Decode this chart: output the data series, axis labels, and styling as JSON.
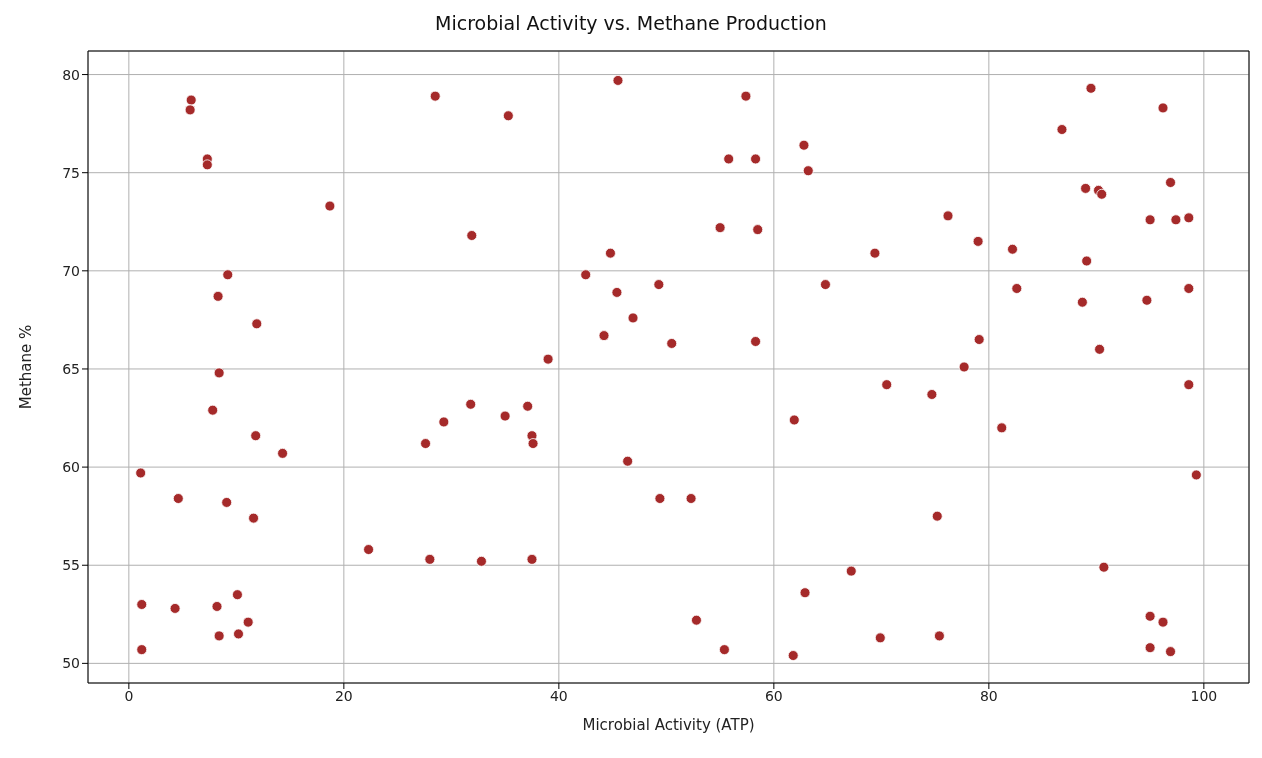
{
  "chart_data": {
    "type": "scatter",
    "title": "Microbial Activity vs. Methane Production",
    "xlabel": "Microbial Activity (ATP)",
    "ylabel": "Methane %",
    "x": [
      5.8,
      5.7,
      7.3,
      7.3,
      18.7,
      31.9,
      28.5,
      35.3,
      9.2,
      8.3,
      11.9,
      8.4,
      7.8,
      11.8,
      14.3,
      1.1,
      4.6,
      9.1,
      11.6,
      1.2,
      4.3,
      8.2,
      10.1,
      11.1,
      8.4,
      10.2,
      1.2,
      22.3,
      27.6,
      29.3,
      31.8,
      35.0,
      28.0,
      32.8,
      37.1,
      37.5,
      37.6,
      37.5,
      39.0,
      45.5,
      57.4,
      62.8,
      55.8,
      58.3,
      63.2,
      55.0,
      58.5,
      44.8,
      69.4,
      42.5,
      45.4,
      49.3,
      64.8,
      46.9,
      44.2,
      50.5,
      58.3,
      70.5,
      61.9,
      46.4,
      49.4,
      52.3,
      67.2,
      62.9,
      52.8,
      69.9,
      55.4,
      61.8,
      89.5,
      96.2,
      86.8,
      89.0,
      90.2,
      90.5,
      96.9,
      76.2,
      95.0,
      97.4,
      98.6,
      79.0,
      82.2,
      89.1,
      82.6,
      88.7,
      94.7,
      98.6,
      79.1,
      77.7,
      90.3,
      74.7,
      98.6,
      81.2,
      99.3,
      75.2,
      90.7,
      95.0,
      96.2,
      75.4,
      95.0,
      96.9
    ],
    "values": [
      78.7,
      78.2,
      75.7,
      75.4,
      73.3,
      71.8,
      78.9,
      77.9,
      69.8,
      68.7,
      67.3,
      64.8,
      62.9,
      61.6,
      60.7,
      59.7,
      58.4,
      58.2,
      57.4,
      53.0,
      52.8,
      52.9,
      53.5,
      52.1,
      51.4,
      51.5,
      50.7,
      55.8,
      61.2,
      62.3,
      63.2,
      62.6,
      55.3,
      55.2,
      63.1,
      61.6,
      61.2,
      55.3,
      65.5,
      79.7,
      78.9,
      76.4,
      75.7,
      75.7,
      75.1,
      72.2,
      72.1,
      70.9,
      70.9,
      69.8,
      68.9,
      69.3,
      69.3,
      67.6,
      66.7,
      66.3,
      66.4,
      64.2,
      62.4,
      60.3,
      58.4,
      58.4,
      54.7,
      53.6,
      52.2,
      51.3,
      50.7,
      50.4,
      79.3,
      78.3,
      77.2,
      74.2,
      74.1,
      73.9,
      74.5,
      72.8,
      72.6,
      72.6,
      72.7,
      71.5,
      71.1,
      70.5,
      69.1,
      68.4,
      68.5,
      69.1,
      66.5,
      65.1,
      66.0,
      63.7,
      64.2,
      62.0,
      59.6,
      57.5,
      54.9,
      52.4,
      52.1,
      51.4,
      50.8,
      50.6
    ],
    "color": "#a52a2a",
    "marker": "circle",
    "grid": true,
    "xlim": [
      -3.8,
      104.2
    ],
    "xticks": [
      0,
      20,
      40,
      60,
      80,
      100
    ],
    "ylim": [
      49.0,
      81.2
    ],
    "yticks": [
      50,
      55,
      60,
      65,
      70,
      75,
      80
    ]
  }
}
